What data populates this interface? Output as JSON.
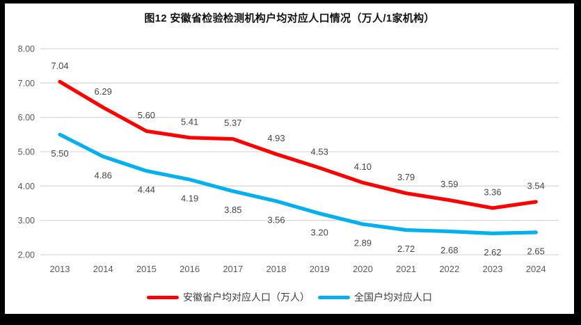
{
  "title": "图12 安徽省检验检测机构户均对应人口情况（万人/1家机构）",
  "legend": {
    "items": [
      {
        "label": "安徽省户均对应人口（万人）",
        "color": "#FF0000"
      },
      {
        "label": "全国户均对应人口",
        "color": "#00B0F0"
      }
    ]
  },
  "chart_data": {
    "type": "line",
    "title": "图12 安徽省检验检测机构户均对应人口情况（万人/1家机构）",
    "categories": [
      "2013",
      "2014",
      "2015",
      "2016",
      "2017",
      "2018",
      "2019",
      "2020",
      "2021",
      "2022",
      "2023",
      "2024"
    ],
    "series": [
      {
        "name": "安徽省户均对应人口（万人）",
        "color": "#FF0000",
        "values": [
          7.04,
          6.29,
          5.6,
          5.41,
          5.37,
          4.93,
          4.53,
          4.1,
          3.79,
          3.59,
          3.36,
          3.54
        ],
        "label_position": "above"
      },
      {
        "name": "全国户均对应人口",
        "color": "#00B0F0",
        "values": [
          5.5,
          4.86,
          4.44,
          4.19,
          3.85,
          3.56,
          3.2,
          2.89,
          2.72,
          2.68,
          2.62,
          2.65
        ],
        "label_position": "below"
      }
    ],
    "xlabel": "",
    "ylabel": "",
    "ylim": [
      2,
      8
    ],
    "y_ticks": [
      "8.00",
      "7.00",
      "6.00",
      "5.00",
      "4.00",
      "3.00",
      "2.00"
    ],
    "grid": true,
    "legend_position": "bottom",
    "colors": {
      "gridline": "#D9D9D9",
      "tick_label": "#595959",
      "data_label": "#474747",
      "background": "#FFFFFF",
      "frame": "#000000"
    }
  }
}
